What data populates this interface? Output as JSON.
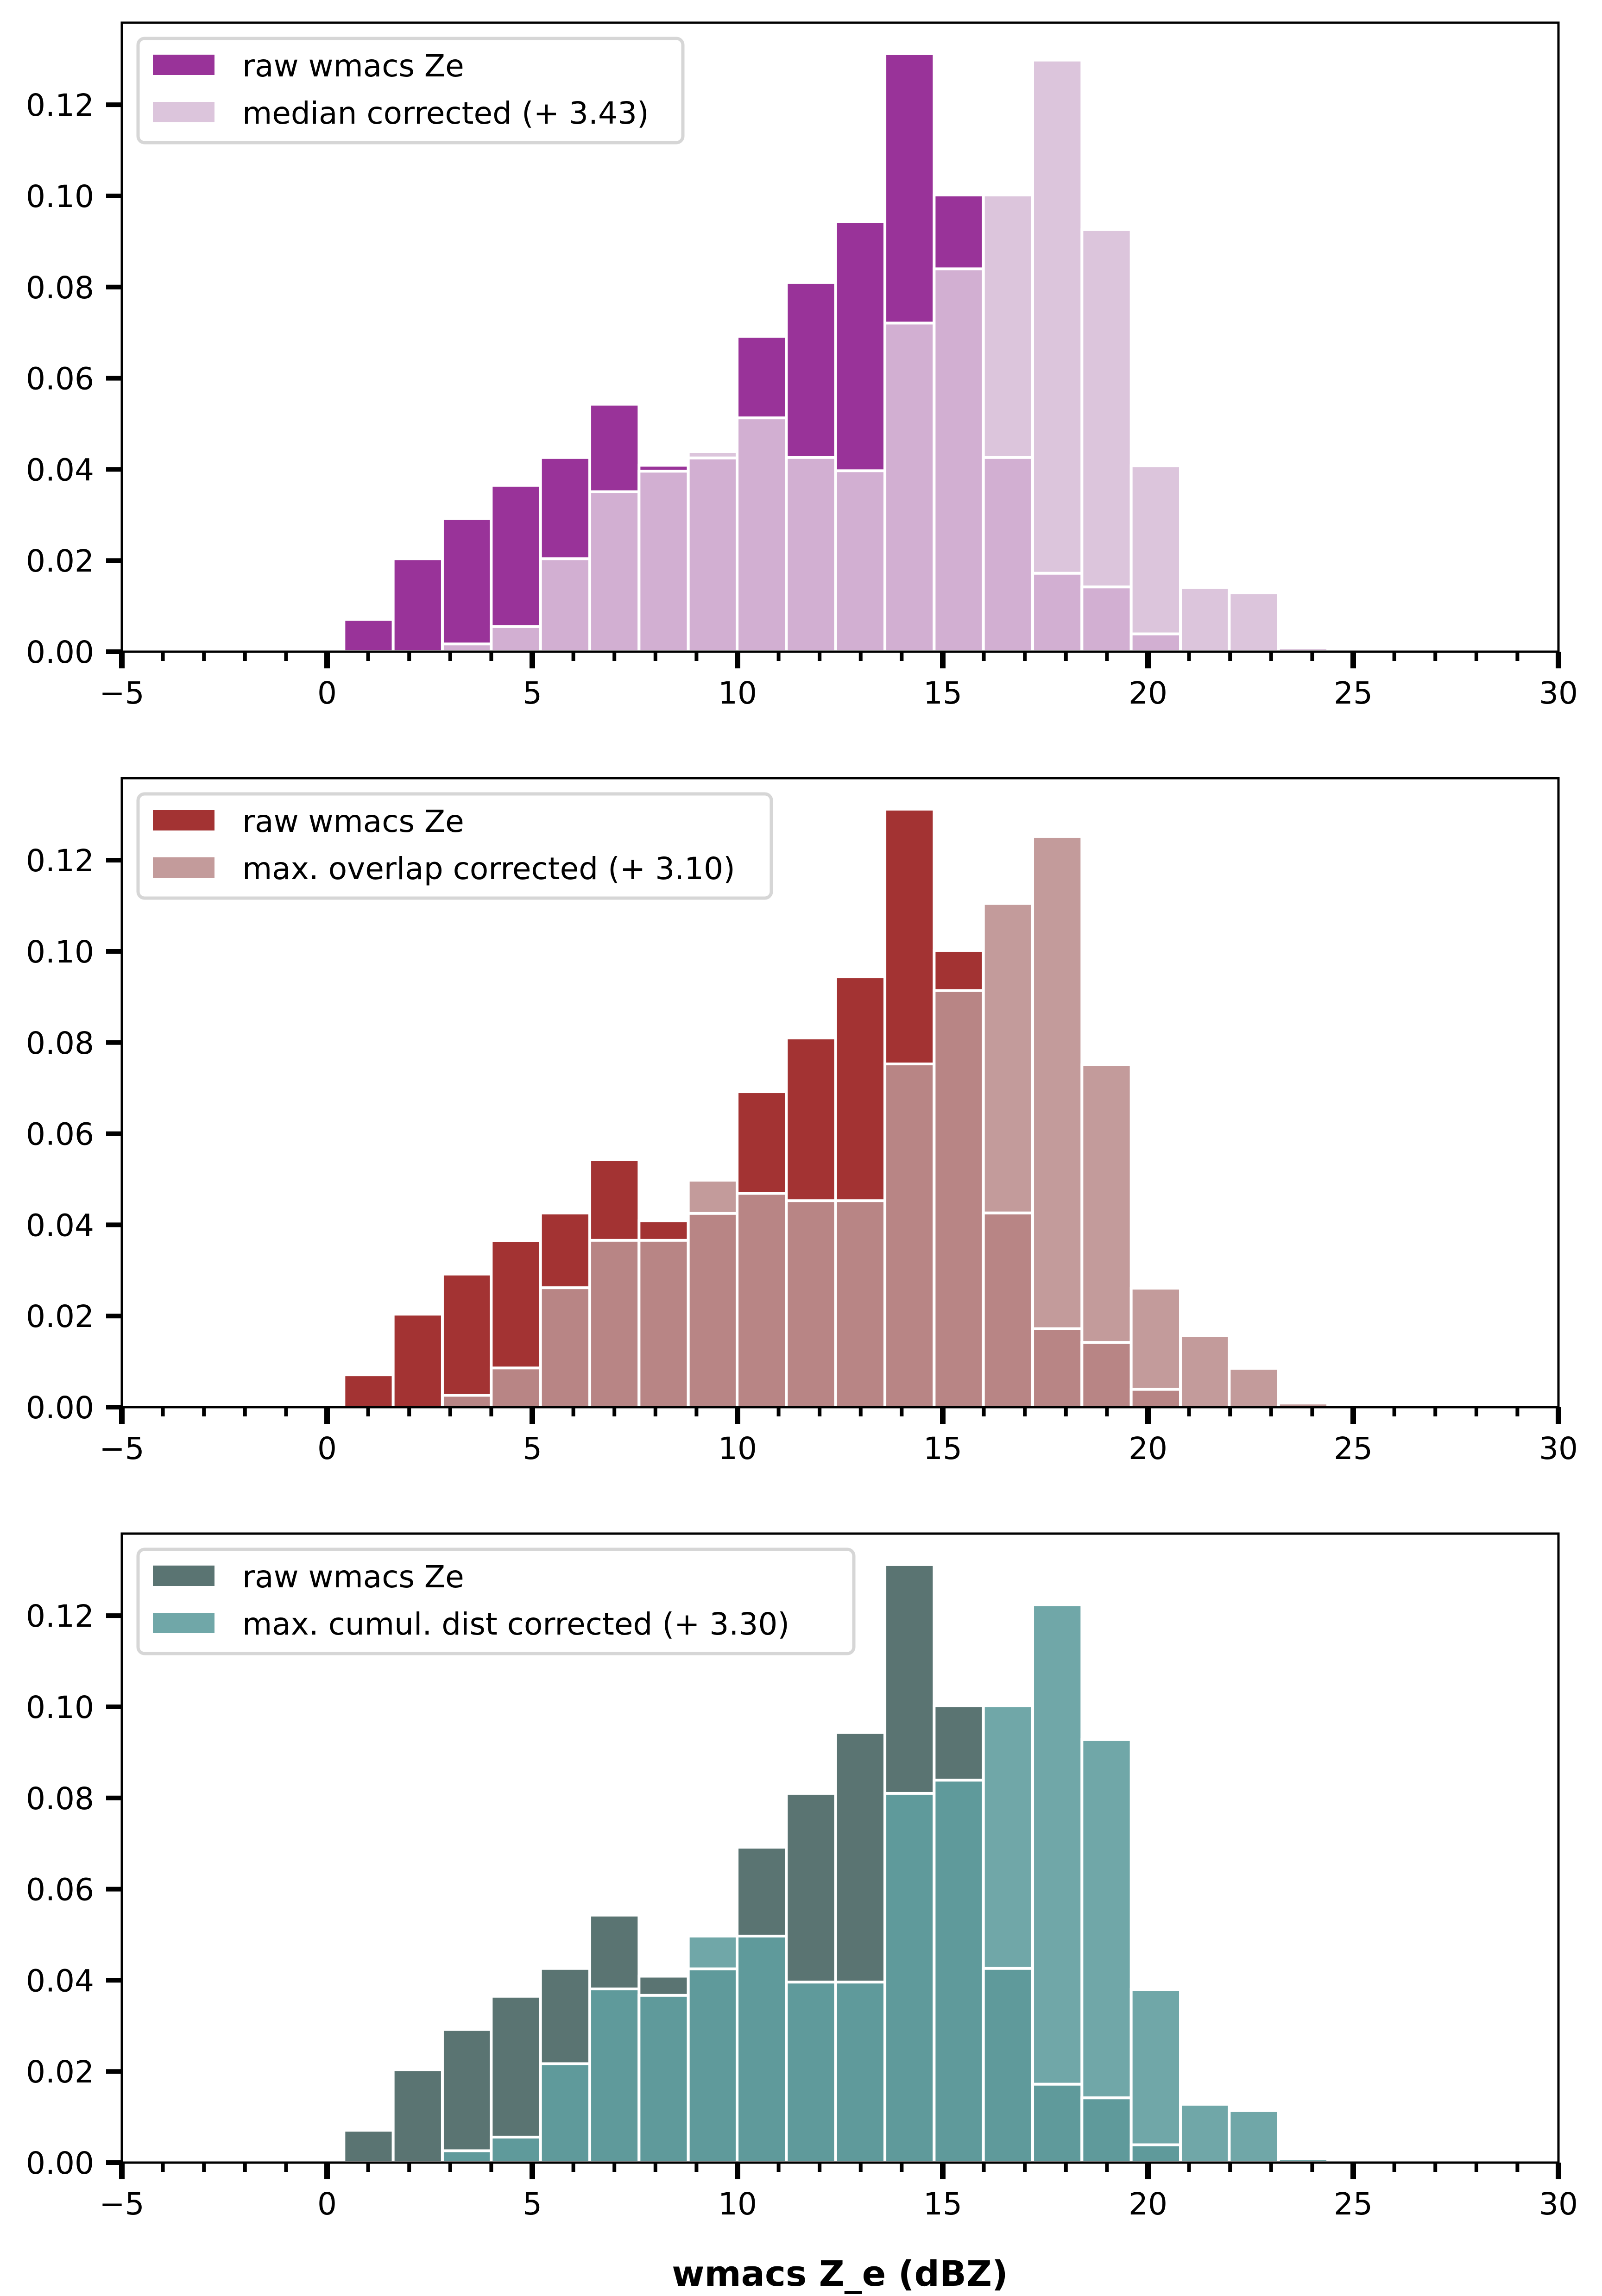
{
  "figure": {
    "xlabel": "wmacs Z_e (dBZ)"
  },
  "chart_data": [
    {
      "type": "bar",
      "subtype": "overlaid-histogram",
      "title": "",
      "xlabel": "",
      "ylabel": "",
      "xlim": [
        -5,
        30
      ],
      "ylim": [
        0,
        0.138
      ],
      "xticks": [
        -5,
        0,
        5,
        10,
        15,
        20,
        25,
        30
      ],
      "xtick_labels": [
        "−5",
        "0",
        "5",
        "10",
        "15",
        "20",
        "25",
        "30"
      ],
      "yticks": [
        0.0,
        0.02,
        0.04,
        0.06,
        0.08,
        0.1,
        0.12
      ],
      "ytick_labels": [
        "0.00",
        "0.02",
        "0.04",
        "0.06",
        "0.08",
        "0.10",
        "0.12"
      ],
      "grid": false,
      "legend_position": "top-left",
      "bin_edges": [
        0.41,
        1.61,
        2.81,
        4.0,
        5.2,
        6.4,
        7.6,
        8.8,
        9.99,
        11.19,
        12.39,
        13.59,
        14.79,
        15.99,
        17.19,
        18.39,
        19.59,
        20.79,
        21.98,
        23.18,
        24.38
      ],
      "colors": {
        "raw": "#993399",
        "corrected": "#dcc5dc",
        "overlap": "#d2afd2"
      },
      "series": [
        {
          "name": "raw wmacs Ze",
          "values": [
            0.0071,
            0.0204,
            0.0292,
            0.0365,
            0.0426,
            0.0543,
            0.0409,
            0.0425,
            0.0692,
            0.081,
            0.0944,
            0.1312,
            0.1002,
            0.0426,
            0.0172,
            0.0142,
            0.0039,
            0,
            0,
            0
          ]
        },
        {
          "name": "median corrected (+ 3.43)",
          "values": [
            0,
            0,
            0.0017,
            0.0055,
            0.0204,
            0.0351,
            0.0396,
            0.0439,
            0.0513,
            0.0426,
            0.0397,
            0.0721,
            0.084,
            0.1002,
            0.1298,
            0.0926,
            0.0408,
            0.0141,
            0.0129,
            0.0009
          ]
        }
      ]
    },
    {
      "type": "bar",
      "subtype": "overlaid-histogram",
      "title": "",
      "xlabel": "",
      "ylabel": "",
      "xlim": [
        -5,
        30
      ],
      "ylim": [
        0,
        0.138
      ],
      "xticks": [
        -5,
        0,
        5,
        10,
        15,
        20,
        25,
        30
      ],
      "xtick_labels": [
        "−5",
        "0",
        "5",
        "10",
        "15",
        "20",
        "25",
        "30"
      ],
      "yticks": [
        0.0,
        0.02,
        0.04,
        0.06,
        0.08,
        0.1,
        0.12
      ],
      "ytick_labels": [
        "0.00",
        "0.02",
        "0.04",
        "0.06",
        "0.08",
        "0.10",
        "0.12"
      ],
      "grid": false,
      "legend_position": "top-left",
      "bin_edges": [
        0.41,
        1.61,
        2.81,
        4.0,
        5.2,
        6.4,
        7.6,
        8.8,
        9.99,
        11.19,
        12.39,
        13.59,
        14.79,
        15.99,
        17.19,
        18.39,
        19.59,
        20.79,
        21.98,
        23.18,
        24.38
      ],
      "colors": {
        "raw": "#a33333",
        "corrected": "#c39b9b",
        "overlap": "#b88585"
      },
      "series": [
        {
          "name": "raw wmacs Ze",
          "values": [
            0.0071,
            0.0204,
            0.0292,
            0.0365,
            0.0426,
            0.0543,
            0.0409,
            0.0425,
            0.0692,
            0.081,
            0.0944,
            0.1312,
            0.1002,
            0.0426,
            0.0172,
            0.0142,
            0.0039,
            0,
            0,
            0
          ]
        },
        {
          "name": "max. overlap corrected (+ 3.10)",
          "values": [
            0,
            0,
            0.0026,
            0.0086,
            0.0262,
            0.0366,
            0.0366,
            0.0498,
            0.0469,
            0.0453,
            0.0453,
            0.0753,
            0.0914,
            0.1105,
            0.1252,
            0.0751,
            0.0261,
            0.0157,
            0.0085,
            0.0009
          ]
        }
      ]
    },
    {
      "type": "bar",
      "subtype": "overlaid-histogram",
      "title": "",
      "xlabel": "wmacs Z_e (dBZ)",
      "ylabel": "",
      "xlim": [
        -5,
        30
      ],
      "ylim": [
        0,
        0.138
      ],
      "xticks": [
        -5,
        0,
        5,
        10,
        15,
        20,
        25,
        30
      ],
      "xtick_labels": [
        "−5",
        "0",
        "5",
        "10",
        "15",
        "20",
        "25",
        "30"
      ],
      "yticks": [
        0.0,
        0.02,
        0.04,
        0.06,
        0.08,
        0.1,
        0.12
      ],
      "ytick_labels": [
        "0.00",
        "0.02",
        "0.04",
        "0.06",
        "0.08",
        "0.10",
        "0.12"
      ],
      "grid": false,
      "legend_position": "top-left",
      "bin_edges": [
        0.41,
        1.61,
        2.81,
        4.0,
        5.2,
        6.4,
        7.6,
        8.8,
        9.99,
        11.19,
        12.39,
        13.59,
        14.79,
        15.99,
        17.19,
        18.39,
        19.59,
        20.79,
        21.98,
        23.18,
        24.38
      ],
      "colors": {
        "raw": "#5a7472",
        "corrected": "#70a7a8",
        "overlap": "#5f9a9b"
      },
      "series": [
        {
          "name": "raw wmacs Ze",
          "values": [
            0.0071,
            0.0204,
            0.0292,
            0.0365,
            0.0426,
            0.0543,
            0.0409,
            0.0425,
            0.0692,
            0.081,
            0.0944,
            0.1312,
            0.1002,
            0.0426,
            0.0172,
            0.0142,
            0.0039,
            0,
            0,
            0
          ]
        },
        {
          "name": "max. cumul. dist corrected (+ 3.30)",
          "values": [
            0,
            0,
            0.0026,
            0.0056,
            0.0217,
            0.0381,
            0.0367,
            0.0497,
            0.0497,
            0.0396,
            0.0396,
            0.081,
            0.0839,
            0.1002,
            0.1224,
            0.0928,
            0.038,
            0.0128,
            0.0114,
            0.0009
          ]
        }
      ]
    }
  ]
}
